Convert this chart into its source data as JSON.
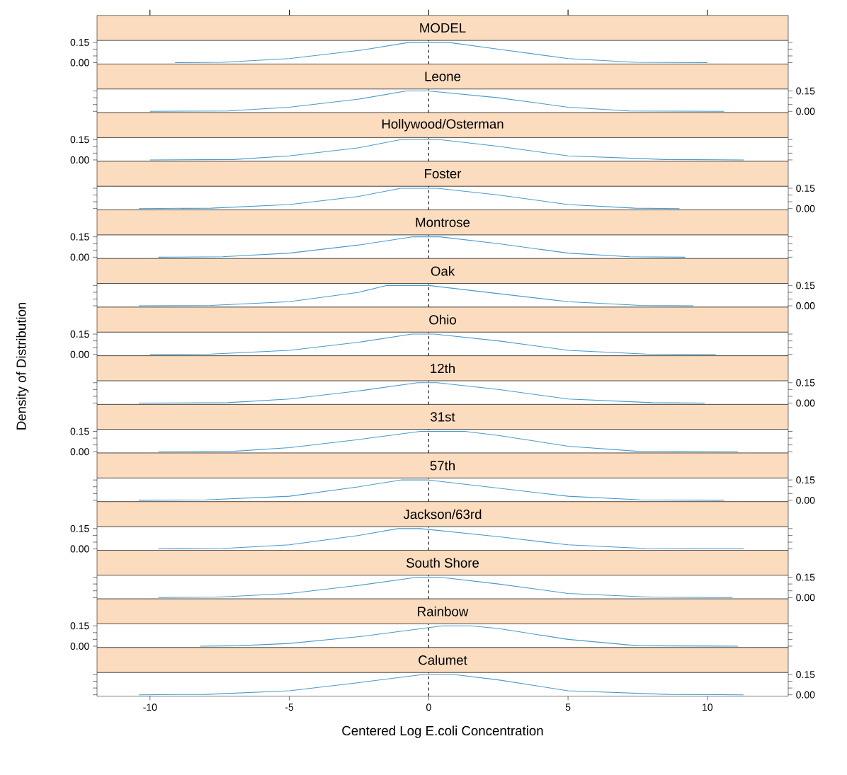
{
  "chart_data": [
    {
      "type": "line",
      "title": "MODEL",
      "x": [
        -9.1,
        -7.4,
        -5,
        -2.5,
        -0.7,
        0.7,
        2.5,
        5,
        7.4,
        10.0
      ],
      "values": [
        0,
        0.003,
        0.03,
        0.09,
        0.15,
        0.15,
        0.1,
        0.03,
        0.003,
        0
      ],
      "color": "#4a9bc9",
      "xlim": [
        -11.9,
        12.9
      ],
      "xticks": [
        {
          "value": -10,
          "label": null
        },
        {
          "value": -5,
          "label": null
        },
        {
          "value": 0,
          "label": null
        },
        {
          "value": 5,
          "label": null
        },
        {
          "value": 10,
          "label": null
        }
      ],
      "ylim": [
        -0.01,
        0.165
      ],
      "yticks": [
        {
          "value": 0,
          "label": "0.00"
        },
        {
          "value": 0.05,
          "label": null
        },
        {
          "value": 0.1,
          "label": null
        },
        {
          "value": 0.15,
          "label": "0.15"
        }
      ],
      "tick_labels": "y",
      "ref_lines": [
        {
          "axis": "x",
          "value": 0,
          "line_style": "dashed",
          "color": "#000000"
        }
      ]
    },
    {
      "type": "line",
      "title": "Leone",
      "x": [
        -10,
        -7.2,
        -5,
        -2.5,
        -0.8,
        0,
        2.5,
        5,
        7.2,
        10.6
      ],
      "values": [
        0,
        0.003,
        0.03,
        0.09,
        0.15,
        0.15,
        0.1,
        0.03,
        0.003,
        0
      ],
      "color": "#4a9bc9",
      "xlim": [
        -11.9,
        12.9
      ],
      "ylim": [
        -0.01,
        0.165
      ],
      "yticks": [
        {
          "value": 0,
          "label": "0.00"
        },
        {
          "value": 0.05,
          "label": null
        },
        {
          "value": 0.1,
          "label": null
        },
        {
          "value": 0.15,
          "label": "0.15"
        }
      ],
      "tick_labels": "y",
      "ref_lines": [
        {
          "axis": "x",
          "value": 0,
          "line_style": "dashed",
          "color": "#000000"
        }
      ]
    },
    {
      "type": "line",
      "title": "Hollywood/Osterman",
      "x": [
        -10,
        -7,
        -5,
        -2.5,
        -1,
        0.4,
        2.5,
        5,
        8.5,
        11.3
      ],
      "values": [
        0,
        0.003,
        0.03,
        0.09,
        0.15,
        0.15,
        0.1,
        0.03,
        0.003,
        0
      ],
      "color": "#4a9bc9",
      "xlim": [
        -11.9,
        12.9
      ],
      "ylim": [
        -0.01,
        0.165
      ],
      "yticks": [
        {
          "value": 0,
          "label": "0.00"
        },
        {
          "value": 0.05,
          "label": null
        },
        {
          "value": 0.1,
          "label": null
        },
        {
          "value": 0.15,
          "label": "0.15"
        }
      ],
      "tick_labels": "y",
      "ref_lines": [
        {
          "axis": "x",
          "value": 0,
          "line_style": "dashed",
          "color": "#000000"
        }
      ]
    },
    {
      "type": "line",
      "title": "Foster",
      "x": [
        -10.4,
        -7.8,
        -5,
        -2.5,
        -1,
        0.3,
        2.5,
        5,
        7.4,
        9.0
      ],
      "values": [
        0,
        0.003,
        0.03,
        0.09,
        0.15,
        0.15,
        0.1,
        0.03,
        0.003,
        0
      ],
      "color": "#4a9bc9",
      "xlim": [
        -11.9,
        12.9
      ],
      "ylim": [
        -0.01,
        0.165
      ],
      "yticks": [
        {
          "value": 0,
          "label": "0.00"
        },
        {
          "value": 0.05,
          "label": null
        },
        {
          "value": 0.1,
          "label": null
        },
        {
          "value": 0.15,
          "label": "0.15"
        }
      ],
      "tick_labels": "y",
      "ref_lines": [
        {
          "axis": "x",
          "value": 0,
          "line_style": "dashed",
          "color": "#000000"
        }
      ]
    },
    {
      "type": "line",
      "title": "Montrose",
      "x": [
        -9.7,
        -7.4,
        -5,
        -2.5,
        -0.6,
        0.4,
        2.5,
        5,
        7.2,
        9.2
      ],
      "values": [
        0,
        0.003,
        0.03,
        0.09,
        0.15,
        0.15,
        0.1,
        0.03,
        0.003,
        0
      ],
      "color": "#4a9bc9",
      "xlim": [
        -11.9,
        12.9
      ],
      "ylim": [
        -0.01,
        0.165
      ],
      "yticks": [
        {
          "value": 0,
          "label": "0.00"
        },
        {
          "value": 0.05,
          "label": null
        },
        {
          "value": 0.1,
          "label": null
        },
        {
          "value": 0.15,
          "label": "0.15"
        }
      ],
      "tick_labels": "y",
      "ref_lines": [
        {
          "axis": "x",
          "value": 0,
          "line_style": "dashed",
          "color": "#000000"
        }
      ]
    },
    {
      "type": "line",
      "title": "Oak",
      "x": [
        -10.4,
        -7.8,
        -5,
        -2.5,
        -1.5,
        0,
        2.5,
        5,
        7.6,
        9.5
      ],
      "values": [
        0,
        0.003,
        0.03,
        0.1,
        0.15,
        0.15,
        0.09,
        0.03,
        0.003,
        0
      ],
      "color": "#4a9bc9",
      "xlim": [
        -11.9,
        12.9
      ],
      "ylim": [
        -0.01,
        0.165
      ],
      "yticks": [
        {
          "value": 0,
          "label": "0.00"
        },
        {
          "value": 0.05,
          "label": null
        },
        {
          "value": 0.1,
          "label": null
        },
        {
          "value": 0.15,
          "label": "0.15"
        }
      ],
      "tick_labels": "y",
      "ref_lines": [
        {
          "axis": "x",
          "value": 0,
          "line_style": "dashed",
          "color": "#000000"
        }
      ]
    },
    {
      "type": "line",
      "title": "Ohio",
      "ylabel": "Density of Distribution",
      "x": [
        -10,
        -7.8,
        -5,
        -2.5,
        -0.6,
        0.2,
        2.5,
        5,
        7.8,
        10.3
      ],
      "values": [
        0,
        0.003,
        0.03,
        0.09,
        0.15,
        0.15,
        0.1,
        0.03,
        0.003,
        0
      ],
      "color": "#4a9bc9",
      "xlim": [
        -11.9,
        12.9
      ],
      "ylim": [
        -0.01,
        0.165
      ],
      "yticks": [
        {
          "value": 0,
          "label": "0.00"
        },
        {
          "value": 0.05,
          "label": null
        },
        {
          "value": 0.1,
          "label": null
        },
        {
          "value": 0.15,
          "label": "0.15"
        }
      ],
      "tick_labels": "y",
      "ref_lines": [
        {
          "axis": "x",
          "value": 0,
          "line_style": "dashed",
          "color": "#000000"
        }
      ]
    },
    {
      "type": "line",
      "title": "12th",
      "x": [
        -10.4,
        -7.2,
        -5,
        -2.5,
        -0.4,
        0.3,
        2.5,
        5,
        8.0,
        9.9
      ],
      "values": [
        0,
        0.003,
        0.03,
        0.09,
        0.15,
        0.15,
        0.1,
        0.03,
        0.003,
        0
      ],
      "color": "#4a9bc9",
      "xlim": [
        -11.9,
        12.9
      ],
      "ylim": [
        -0.01,
        0.165
      ],
      "yticks": [
        {
          "value": 0,
          "label": "0.00"
        },
        {
          "value": 0.05,
          "label": null
        },
        {
          "value": 0.1,
          "label": null
        },
        {
          "value": 0.15,
          "label": "0.15"
        }
      ],
      "tick_labels": "y",
      "ref_lines": [
        {
          "axis": "x",
          "value": 0,
          "line_style": "dashed",
          "color": "#000000"
        }
      ]
    },
    {
      "type": "line",
      "title": "31st",
      "x": [
        -9.7,
        -7,
        -5,
        -2.5,
        -0.3,
        1.3,
        2.5,
        5,
        7.5,
        11.1
      ],
      "values": [
        0,
        0.003,
        0.03,
        0.09,
        0.15,
        0.15,
        0.12,
        0.04,
        0.003,
        0
      ],
      "color": "#4a9bc9",
      "xlim": [
        -11.9,
        12.9
      ],
      "ylim": [
        -0.01,
        0.165
      ],
      "yticks": [
        {
          "value": 0,
          "label": "0.00"
        },
        {
          "value": 0.05,
          "label": null
        },
        {
          "value": 0.1,
          "label": null
        },
        {
          "value": 0.15,
          "label": "0.15"
        }
      ],
      "tick_labels": "y",
      "ref_lines": [
        {
          "axis": "x",
          "value": 0,
          "line_style": "dashed",
          "color": "#000000"
        }
      ]
    },
    {
      "type": "line",
      "title": "57th",
      "x": [
        -10.4,
        -8,
        -5,
        -2.5,
        -1,
        0,
        2.5,
        5,
        7.6,
        10.6
      ],
      "values": [
        0,
        0.003,
        0.03,
        0.1,
        0.15,
        0.15,
        0.09,
        0.03,
        0.003,
        0
      ],
      "color": "#4a9bc9",
      "xlim": [
        -11.9,
        12.9
      ],
      "ylim": [
        -0.01,
        0.165
      ],
      "yticks": [
        {
          "value": 0,
          "label": "0.00"
        },
        {
          "value": 0.05,
          "label": null
        },
        {
          "value": 0.1,
          "label": null
        },
        {
          "value": 0.15,
          "label": "0.15"
        }
      ],
      "tick_labels": "y",
      "ref_lines": [
        {
          "axis": "x",
          "value": 0,
          "line_style": "dashed",
          "color": "#000000"
        }
      ]
    },
    {
      "type": "line",
      "title": "Jackson/63rd",
      "x": [
        -9.7,
        -7.4,
        -5,
        -2.5,
        -1.1,
        -0.3,
        2.5,
        5,
        7.8,
        11.3
      ],
      "values": [
        0,
        0.003,
        0.03,
        0.1,
        0.15,
        0.15,
        0.09,
        0.03,
        0.003,
        0
      ],
      "color": "#4a9bc9",
      "xlim": [
        -11.9,
        12.9
      ],
      "ylim": [
        -0.01,
        0.165
      ],
      "yticks": [
        {
          "value": 0,
          "label": "0.00"
        },
        {
          "value": 0.05,
          "label": null
        },
        {
          "value": 0.1,
          "label": null
        },
        {
          "value": 0.15,
          "label": "0.15"
        }
      ],
      "tick_labels": "y",
      "ref_lines": [
        {
          "axis": "x",
          "value": 0,
          "line_style": "dashed",
          "color": "#000000"
        }
      ]
    },
    {
      "type": "line",
      "title": "South Shore",
      "x": [
        -9.7,
        -7.6,
        -5,
        -2.5,
        -0.4,
        0.4,
        2.5,
        5,
        8.0,
        10.9
      ],
      "values": [
        0,
        0.003,
        0.03,
        0.09,
        0.15,
        0.15,
        0.1,
        0.03,
        0.003,
        0
      ],
      "color": "#4a9bc9",
      "xlim": [
        -11.9,
        12.9
      ],
      "ylim": [
        -0.01,
        0.165
      ],
      "yticks": [
        {
          "value": 0,
          "label": "0.00"
        },
        {
          "value": 0.05,
          "label": null
        },
        {
          "value": 0.1,
          "label": null
        },
        {
          "value": 0.15,
          "label": "0.15"
        }
      ],
      "tick_labels": "y",
      "ref_lines": [
        {
          "axis": "x",
          "value": 0,
          "line_style": "dashed",
          "color": "#000000"
        }
      ]
    },
    {
      "type": "line",
      "title": "Rainbow",
      "x": [
        -8.2,
        -6.8,
        -5,
        -2.5,
        0.5,
        1.5,
        2.5,
        5,
        7.5,
        11.1
      ],
      "values": [
        0,
        0.003,
        0.02,
        0.07,
        0.15,
        0.15,
        0.13,
        0.05,
        0.003,
        0
      ],
      "color": "#4a9bc9",
      "xlim": [
        -11.9,
        12.9
      ],
      "ylim": [
        -0.01,
        0.165
      ],
      "yticks": [
        {
          "value": 0,
          "label": "0.00"
        },
        {
          "value": 0.05,
          "label": null
        },
        {
          "value": 0.1,
          "label": null
        },
        {
          "value": 0.15,
          "label": "0.15"
        }
      ],
      "tick_labels": "y",
      "ref_lines": [
        {
          "axis": "x",
          "value": 0,
          "line_style": "dashed",
          "color": "#000000"
        }
      ]
    },
    {
      "type": "line",
      "title": "Calumet",
      "xlabel": "Centered Log E.coli Concentration",
      "x": [
        -10.4,
        -8,
        -5,
        -2.5,
        -0.2,
        0.9,
        2.5,
        5,
        8.6,
        11.3
      ],
      "values": [
        0,
        0.003,
        0.03,
        0.09,
        0.15,
        0.15,
        0.11,
        0.03,
        0.003,
        0
      ],
      "color": "#4a9bc9",
      "xlim": [
        -11.9,
        12.9
      ],
      "xticks": [
        -10,
        -5,
        0,
        5,
        10
      ],
      "ylim": [
        -0.01,
        0.165
      ],
      "yticks": [
        {
          "value": 0,
          "label": "0.00"
        },
        {
          "value": 0.05,
          "label": null
        },
        {
          "value": 0.1,
          "label": null
        },
        {
          "value": 0.15,
          "label": "0.15"
        }
      ],
      "ref_lines": [
        {
          "axis": "x",
          "value": 0,
          "line_style": "dashed",
          "color": "#000000"
        }
      ]
    }
  ]
}
